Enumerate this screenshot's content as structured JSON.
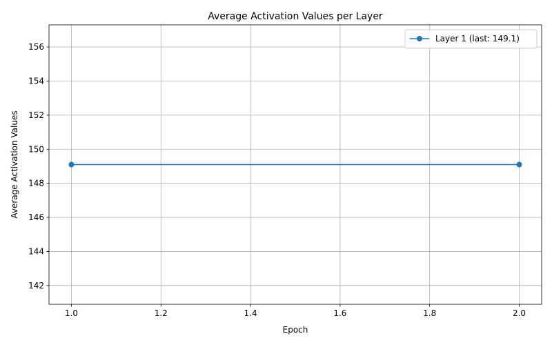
{
  "chart_data": {
    "type": "line",
    "title": "Average Activation Values per Layer",
    "xlabel": "Epoch",
    "ylabel": "Average Activation Values",
    "x": [
      1.0,
      2.0
    ],
    "series": [
      {
        "name": "Layer 1 (last: 149.1)",
        "values": [
          149.1,
          149.1
        ],
        "color": "#1f77b4",
        "marker": "circle"
      }
    ],
    "xlim": [
      0.95,
      2.05
    ],
    "ylim": [
      140.9,
      157.3
    ],
    "xticks": [
      1.0,
      1.2,
      1.4,
      1.6,
      1.8,
      2.0
    ],
    "xtick_labels": [
      "1.0",
      "1.2",
      "1.4",
      "1.6",
      "1.8",
      "2.0"
    ],
    "yticks": [
      142,
      144,
      146,
      148,
      150,
      152,
      154,
      156
    ],
    "ytick_labels": [
      "142",
      "144",
      "146",
      "148",
      "150",
      "152",
      "154",
      "156"
    ],
    "grid": true,
    "legend_position": "top-right"
  }
}
